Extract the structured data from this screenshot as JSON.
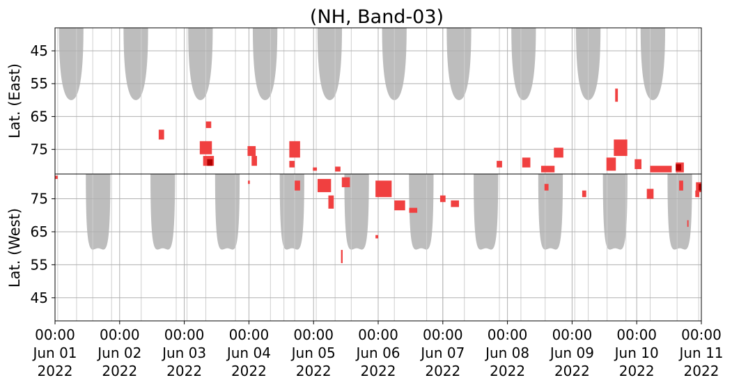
{
  "chart_data": {
    "type": "heatmap",
    "title": "(NH, Band-03)",
    "x_range": [
      "2022-06-01T00:00",
      "2022-06-11T00:00"
    ],
    "x_tick_labels": [
      [
        "00:00",
        "Jun 01",
        "2022"
      ],
      [
        "00:00",
        "Jun 02",
        "2022"
      ],
      [
        "00:00",
        "Jun 03",
        "2022"
      ],
      [
        "00:00",
        "Jun 04",
        "2022"
      ],
      [
        "00:00",
        "Jun 05",
        "2022"
      ],
      [
        "00:00",
        "Jun 06",
        "2022"
      ],
      [
        "00:00",
        "Jun 07",
        "2022"
      ],
      [
        "00:00",
        "Jun 08",
        "2022"
      ],
      [
        "00:00",
        "Jun 09",
        "2022"
      ],
      [
        "00:00",
        "Jun 10",
        "2022"
      ],
      [
        "00:00",
        "Jun 11",
        "2022"
      ]
    ],
    "panels": [
      {
        "ylabel": "Lat. (East)",
        "ylim": [
          38,
          82.5
        ],
        "yticks": [
          45,
          55,
          65,
          75
        ],
        "grid": true,
        "gray_periods": [
          {
            "center": "2022-06-01T06:00",
            "half_width_days": 0.2,
            "min_lat": 60
          },
          {
            "center": "2022-06-02T06:00",
            "half_width_days": 0.2,
            "min_lat": 60
          },
          {
            "center": "2022-06-03T06:00",
            "half_width_days": 0.2,
            "min_lat": 60
          },
          {
            "center": "2022-06-04T06:00",
            "half_width_days": 0.2,
            "min_lat": 60
          },
          {
            "center": "2022-06-05T06:00",
            "half_width_days": 0.2,
            "min_lat": 60
          },
          {
            "center": "2022-06-06T06:00",
            "half_width_days": 0.2,
            "min_lat": 60
          },
          {
            "center": "2022-06-07T06:00",
            "half_width_days": 0.2,
            "min_lat": 60
          },
          {
            "center": "2022-06-08T06:00",
            "half_width_days": 0.2,
            "min_lat": 60
          },
          {
            "center": "2022-06-09T06:00",
            "half_width_days": 0.2,
            "min_lat": 60
          },
          {
            "center": "2022-06-10T06:00",
            "half_width_days": 0.2,
            "min_lat": 60
          }
        ],
        "red_patches": [
          {
            "time": "2022-06-02T15:30",
            "lat": 70.5,
            "dt_hours": 2.0,
            "dlat": 3
          },
          {
            "time": "2022-06-03T08:00",
            "lat": 74.5,
            "dt_hours": 4.5,
            "dlat": 4
          },
          {
            "time": "2022-06-03T09:00",
            "lat": 78.5,
            "dt_hours": 4.0,
            "dlat": 3
          },
          {
            "time": "2022-06-03T09:00",
            "lat": 67.5,
            "dt_hours": 2.0,
            "dlat": 2
          },
          {
            "time": "2022-06-04T01:00",
            "lat": 75.5,
            "dt_hours": 3.0,
            "dlat": 3
          },
          {
            "time": "2022-06-04T02:00",
            "lat": 78.5,
            "dt_hours": 2.0,
            "dlat": 3
          },
          {
            "time": "2022-06-04T17:00",
            "lat": 75.0,
            "dt_hours": 4.0,
            "dlat": 5
          },
          {
            "time": "2022-06-04T16:00",
            "lat": 79.5,
            "dt_hours": 2.0,
            "dlat": 2
          },
          {
            "time": "2022-06-05T00:30",
            "lat": 81.0,
            "dt_hours": 1.5,
            "dlat": 1
          },
          {
            "time": "2022-06-05T09:00",
            "lat": 81.0,
            "dt_hours": 2.0,
            "dlat": 1.5
          },
          {
            "time": "2022-06-07T21:00",
            "lat": 79.5,
            "dt_hours": 2.0,
            "dlat": 2
          },
          {
            "time": "2022-06-08T07:00",
            "lat": 79.0,
            "dt_hours": 3.0,
            "dlat": 3
          },
          {
            "time": "2022-06-08T19:00",
            "lat": 76.0,
            "dt_hours": 3.5,
            "dlat": 3
          },
          {
            "time": "2022-06-08T15:00",
            "lat": 81.0,
            "dt_hours": 5.0,
            "dlat": 2
          },
          {
            "time": "2022-06-09T16:30",
            "lat": 58.5,
            "dt_hours": 1.0,
            "dlat": 4
          },
          {
            "time": "2022-06-09T18:00",
            "lat": 74.5,
            "dt_hours": 5.0,
            "dlat": 5
          },
          {
            "time": "2022-06-09T14:30",
            "lat": 79.5,
            "dt_hours": 3.5,
            "dlat": 4
          },
          {
            "time": "2022-06-10T00:30",
            "lat": 79.5,
            "dt_hours": 2.5,
            "dlat": 3
          },
          {
            "time": "2022-06-10T09:00",
            "lat": 81.0,
            "dt_hours": 8.0,
            "dlat": 2
          },
          {
            "time": "2022-06-10T16:00",
            "lat": 80.5,
            "dt_hours": 3.0,
            "dlat": 3
          }
        ]
      },
      {
        "ylabel": "Lat. (West)",
        "ylim": [
          82.5,
          38
        ],
        "yticks": [
          75,
          65,
          55,
          45
        ],
        "grid": true,
        "gray_periods": [
          {
            "center": "2022-06-01T16:00",
            "half_width_days": 0.2,
            "min_lat": 60
          },
          {
            "center": "2022-06-02T16:00",
            "half_width_days": 0.2,
            "min_lat": 60
          },
          {
            "center": "2022-06-03T16:00",
            "half_width_days": 0.2,
            "min_lat": 60
          },
          {
            "center": "2022-06-04T16:00",
            "half_width_days": 0.2,
            "min_lat": 60
          },
          {
            "center": "2022-06-05T16:00",
            "half_width_days": 0.2,
            "min_lat": 60
          },
          {
            "center": "2022-06-06T16:00",
            "half_width_days": 0.2,
            "min_lat": 60
          },
          {
            "center": "2022-06-07T16:00",
            "half_width_days": 0.2,
            "min_lat": 60
          },
          {
            "center": "2022-06-08T16:00",
            "half_width_days": 0.2,
            "min_lat": 60
          },
          {
            "center": "2022-06-09T16:00",
            "half_width_days": 0.2,
            "min_lat": 60
          },
          {
            "center": "2022-06-10T16:00",
            "half_width_days": 0.2,
            "min_lat": 60
          }
        ],
        "red_patches": [
          {
            "time": "2022-06-01T00:30",
            "lat": 81.5,
            "dt_hours": 1.0,
            "dlat": 1
          },
          {
            "time": "2022-06-04T00:00",
            "lat": 80.0,
            "dt_hours": 0.7,
            "dlat": 1
          },
          {
            "time": "2022-06-04T18:00",
            "lat": 79.0,
            "dt_hours": 2.0,
            "dlat": 3
          },
          {
            "time": "2022-06-05T04:00",
            "lat": 79.0,
            "dt_hours": 5.0,
            "dlat": 4
          },
          {
            "time": "2022-06-05T06:30",
            "lat": 74.0,
            "dt_hours": 2.0,
            "dlat": 4
          },
          {
            "time": "2022-06-05T12:00",
            "lat": 80.0,
            "dt_hours": 3.0,
            "dlat": 3
          },
          {
            "time": "2022-06-05T10:30",
            "lat": 57.5,
            "dt_hours": 0.6,
            "dlat": 4
          },
          {
            "time": "2022-06-06T02:00",
            "lat": 78.0,
            "dt_hours": 6.0,
            "dlat": 5
          },
          {
            "time": "2022-06-06T08:00",
            "lat": 73.0,
            "dt_hours": 4.0,
            "dlat": 3
          },
          {
            "time": "2022-06-06T13:00",
            "lat": 71.5,
            "dt_hours": 3.0,
            "dlat": 1.5
          },
          {
            "time": "2022-06-05T23:30",
            "lat": 63.5,
            "dt_hours": 1.0,
            "dlat": 1
          },
          {
            "time": "2022-06-07T00:00",
            "lat": 75.0,
            "dt_hours": 2.0,
            "dlat": 2
          },
          {
            "time": "2022-06-07T04:30",
            "lat": 73.5,
            "dt_hours": 3.0,
            "dlat": 2
          },
          {
            "time": "2022-06-08T14:30",
            "lat": 78.5,
            "dt_hours": 1.5,
            "dlat": 2
          },
          {
            "time": "2022-06-09T04:30",
            "lat": 76.5,
            "dt_hours": 1.5,
            "dlat": 2
          },
          {
            "time": "2022-06-10T05:00",
            "lat": 76.5,
            "dt_hours": 2.5,
            "dlat": 3
          },
          {
            "time": "2022-06-10T16:30",
            "lat": 79.0,
            "dt_hours": 1.5,
            "dlat": 3
          },
          {
            "time": "2022-06-10T23:00",
            "lat": 78.5,
            "dt_hours": 2.0,
            "dlat": 3
          },
          {
            "time": "2022-06-10T22:30",
            "lat": 76.5,
            "dt_hours": 1.5,
            "dlat": 2
          },
          {
            "time": "2022-06-10T19:00",
            "lat": 67.5,
            "dt_hours": 0.5,
            "dlat": 2
          }
        ]
      }
    ],
    "dark_red_patches": [
      {
        "panel": 0,
        "time": "2022-06-03T09:30",
        "lat": 79.0,
        "dt_hours": 2.0,
        "dlat": 2
      },
      {
        "panel": 0,
        "time": "2022-06-10T15:30",
        "lat": 80.5,
        "dt_hours": 2.0,
        "dlat": 2
      },
      {
        "panel": 1,
        "time": "2022-06-10T23:30",
        "lat": 78.5,
        "dt_hours": 1.0,
        "dlat": 2
      }
    ],
    "gray_vertical_line_times": [
      "2022-06-01T01:00",
      "2022-06-01T08:00",
      "2022-06-01T14:00",
      "2022-06-01T21:00",
      "2022-06-02T08:00",
      "2022-06-02T21:00",
      "2022-06-03T01:00",
      "2022-06-03T08:00",
      "2022-06-03T19:00",
      "2022-06-04T08:00",
      "2022-06-04T13:00",
      "2022-06-04T17:00",
      "2022-06-05T01:00",
      "2022-06-05T08:00",
      "2022-06-05T14:00",
      "2022-06-06T06:00",
      "2022-06-06T18:00",
      "2022-06-07T00:00",
      "2022-06-07T08:00",
      "2022-06-07T21:00",
      "2022-06-08T05:00",
      "2022-06-08T14:00",
      "2022-06-09T01:00",
      "2022-06-09T06:00",
      "2022-06-09T13:00",
      "2022-06-09T20:00",
      "2022-06-10T05:00",
      "2022-06-10T15:00",
      "2022-06-10T23:00"
    ],
    "colors": {
      "gray_fill": "#bdbdbd",
      "red": "#f04040",
      "dark_red": "#b00000",
      "grid": "#b0b0b0",
      "axis": "#000000"
    }
  }
}
